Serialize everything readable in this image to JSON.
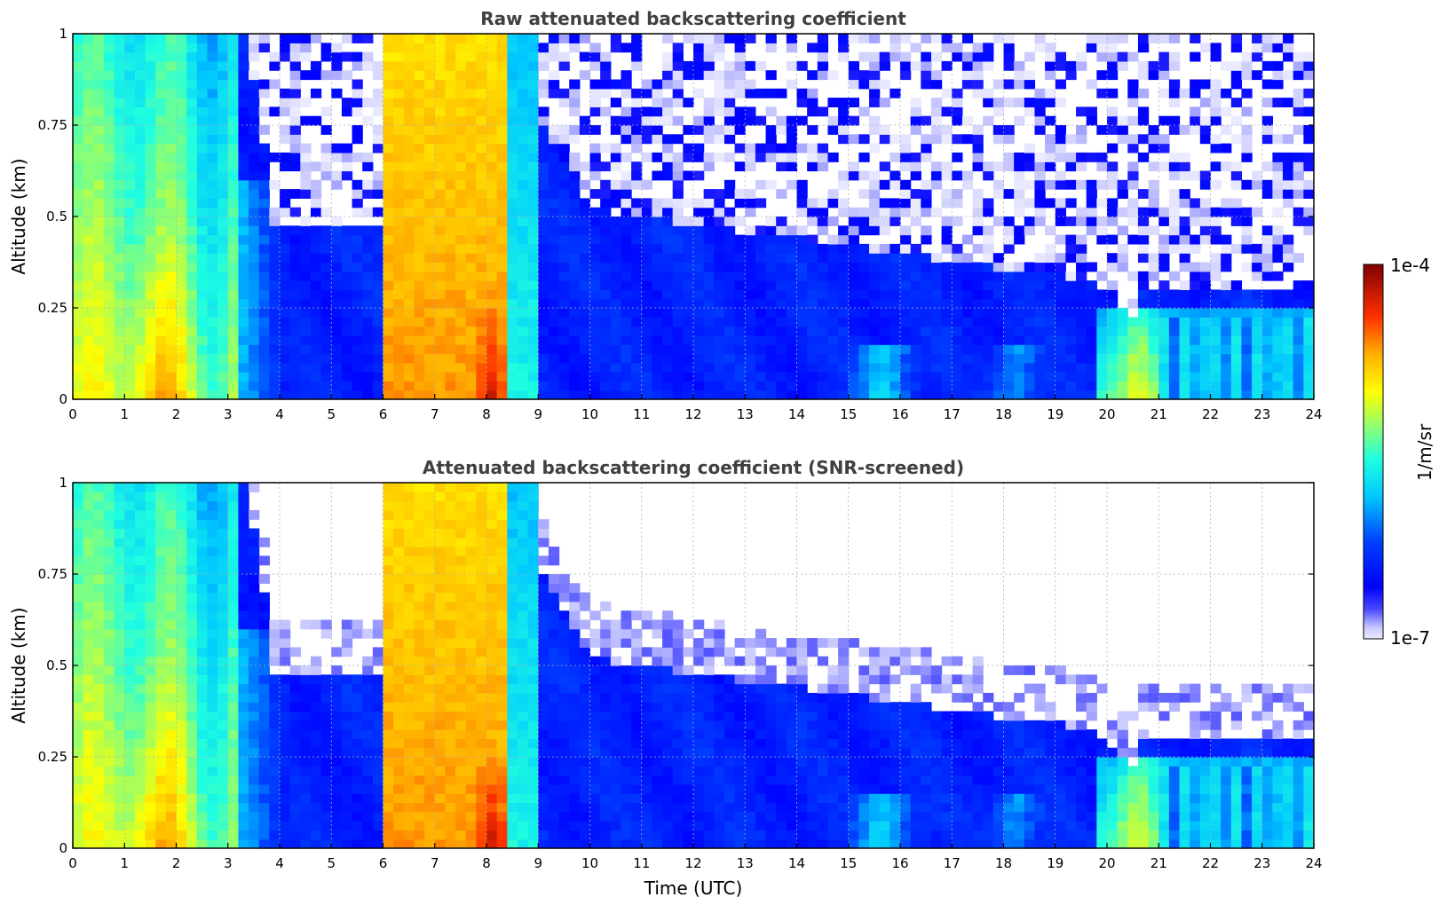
{
  "chart_data": [
    {
      "type": "heatmap",
      "title": "Raw attenuated backscattering coefficient",
      "xlabel": "",
      "ylabel": "Altitude (km)",
      "xlim": [
        0,
        24
      ],
      "ylim": [
        0,
        1
      ],
      "x_ticks": [
        "0",
        "1",
        "2",
        "3",
        "4",
        "5",
        "6",
        "7",
        "8",
        "9",
        "10",
        "11",
        "12",
        "13",
        "14",
        "15",
        "16",
        "17",
        "18",
        "19",
        "20",
        "21",
        "22",
        "23",
        "24"
      ],
      "y_ticks": [
        "0",
        "0.25",
        "0.5",
        "0.75",
        "1"
      ],
      "grid": true,
      "screened": false
    },
    {
      "type": "heatmap",
      "title": "Attenuated backscattering coefficient (SNR-screened)",
      "xlabel": "Time (UTC)",
      "ylabel": "Altitude (km)",
      "xlim": [
        0,
        24
      ],
      "ylim": [
        0,
        1
      ],
      "x_ticks": [
        "0",
        "1",
        "2",
        "3",
        "4",
        "5",
        "6",
        "7",
        "8",
        "9",
        "10",
        "11",
        "12",
        "13",
        "14",
        "15",
        "16",
        "17",
        "18",
        "19",
        "20",
        "21",
        "22",
        "23",
        "24"
      ],
      "y_ticks": [
        "0",
        "0.25",
        "0.5",
        "0.75",
        "1"
      ],
      "grid": true,
      "screened": true
    }
  ],
  "colorbar": {
    "label": "1/m/sr",
    "max_label": "1e-4",
    "min_label": "1e-7",
    "colormap": "jet",
    "scale": "log"
  },
  "colors": {
    "title_text": "#404040",
    "background": "#ffffff",
    "grid": "#b0b0b0"
  }
}
